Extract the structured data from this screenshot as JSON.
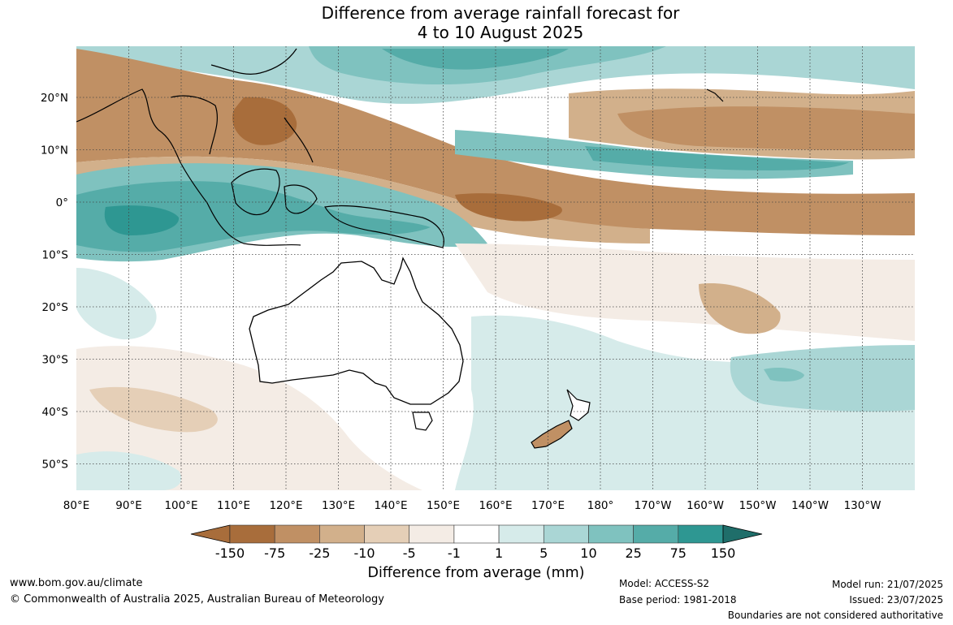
{
  "title": {
    "line1": "Difference from average rainfall forecast for",
    "line2": "4 to 10 August 2025"
  },
  "axes": {
    "lon_labels": [
      "80°E",
      "90°E",
      "100°E",
      "110°E",
      "120°E",
      "130°E",
      "140°E",
      "150°E",
      "160°E",
      "170°E",
      "180°",
      "170°W",
      "160°W",
      "150°W",
      "140°W",
      "130°W"
    ],
    "lat_labels": [
      "20°N",
      "10°N",
      "0°",
      "10°S",
      "20°S",
      "30°S",
      "40°S",
      "50°S"
    ]
  },
  "colorbar": {
    "tick_labels": [
      "-150",
      "-75",
      "-25",
      "-10",
      "-5",
      "-1",
      "1",
      "5",
      "10",
      "25",
      "75",
      "150"
    ],
    "colors": [
      "#a86d3b",
      "#c09064",
      "#d2b08b",
      "#e5cfb7",
      "#f4ece5",
      "#ffffff",
      "#d6ebea",
      "#aad6d5",
      "#7fc2bf",
      "#55aca8",
      "#2e9792",
      "#1f6e6a"
    ],
    "title": "Difference from average (mm)"
  },
  "colors": {
    "dry_strong": "#a86d3b",
    "dry_moderate": "#c09064",
    "dry_light": "#d2b08b",
    "dry_slight": "#e5cfb7",
    "dry_minimal": "#f4ece5",
    "neutral": "#ffffff",
    "wet_minimal": "#d6ebea",
    "wet_slight": "#aad6d5",
    "wet_light": "#7fc2bf",
    "wet_moderate": "#55aca8",
    "wet_strong": "#2e9792"
  },
  "footer": {
    "website": "www.bom.gov.au/climate",
    "copyright": "© Commonwealth of Australia 2025, Australian Bureau of Meteorology",
    "model": "Model: ACCESS-S2",
    "base_period": "Base period: 1981-2018",
    "model_run": "Model run: 21/07/2025",
    "issued": "Issued: 23/07/2025",
    "disclaimer": "Boundaries are not considered authoritative"
  }
}
